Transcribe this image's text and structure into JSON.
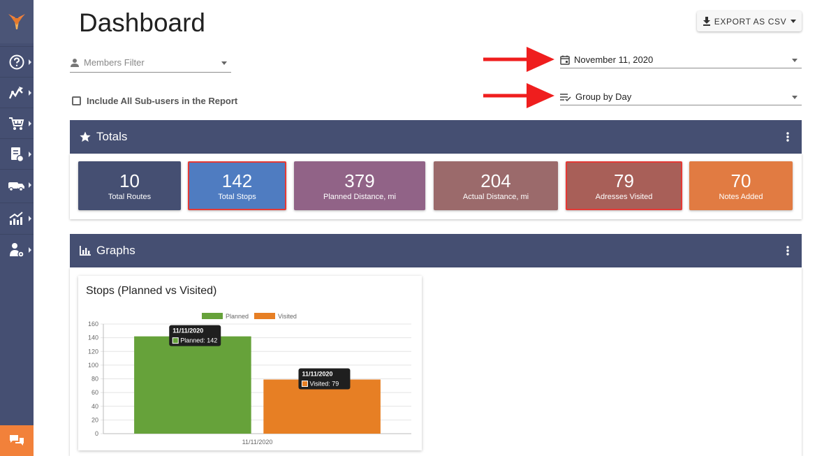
{
  "page": {
    "title": "Dashboard"
  },
  "export": {
    "label": "EXPORT AS CSV"
  },
  "filters": {
    "members_placeholder": "Members Filter",
    "date_value": "November 11, 2020",
    "group_value": "Group by Day",
    "include_subusers_label": "Include All Sub-users in the Report"
  },
  "sidebar": {
    "items": [
      {
        "icon": "help-icon"
      },
      {
        "icon": "routes-icon"
      },
      {
        "icon": "cart-icon"
      },
      {
        "icon": "orders-icon"
      },
      {
        "icon": "vehicles-icon"
      },
      {
        "icon": "analytics-icon"
      },
      {
        "icon": "team-settings-icon"
      }
    ],
    "chat_icon": "chat-icon"
  },
  "totals": {
    "title": "Totals",
    "cards": [
      {
        "value": "10",
        "label": "Total Routes",
        "color": "#454f72",
        "highlighted": false
      },
      {
        "value": "142",
        "label": "Total Stops",
        "color": "#4f7cc1",
        "highlighted": true
      },
      {
        "value": "379",
        "label": "Planned Distance, mi",
        "color": "#916387",
        "highlighted": false
      },
      {
        "value": "204",
        "label": "Actual Distance, mi",
        "color": "#9b6a6b",
        "highlighted": false
      },
      {
        "value": "79",
        "label": "Adresses Visited",
        "color": "#a85f58",
        "highlighted": true
      },
      {
        "value": "70",
        "label": "Notes Added",
        "color": "#e17b42",
        "highlighted": false
      }
    ]
  },
  "graphs": {
    "title": "Graphs"
  },
  "chart_data": {
    "type": "bar",
    "title": "Stops (Planned vs Visited)",
    "categories": [
      "11/11/2020"
    ],
    "series": [
      {
        "name": "Planned",
        "values": [
          142
        ],
        "color": "#66a23a"
      },
      {
        "name": "Visited",
        "values": [
          79
        ],
        "color": "#e77f24"
      }
    ],
    "ylim": [
      0,
      160
    ],
    "yticks": [
      0,
      20,
      40,
      60,
      80,
      100,
      120,
      140,
      160
    ],
    "legend": "top",
    "grid": true,
    "tooltips": [
      {
        "title": "11/11/2020",
        "text": "Planned: 142"
      },
      {
        "title": "11/11/2020",
        "text": "Visited: 79"
      }
    ]
  },
  "colors": {
    "sidebar": "#454f72",
    "accent": "#f2813a",
    "highlight": "#e53935"
  }
}
